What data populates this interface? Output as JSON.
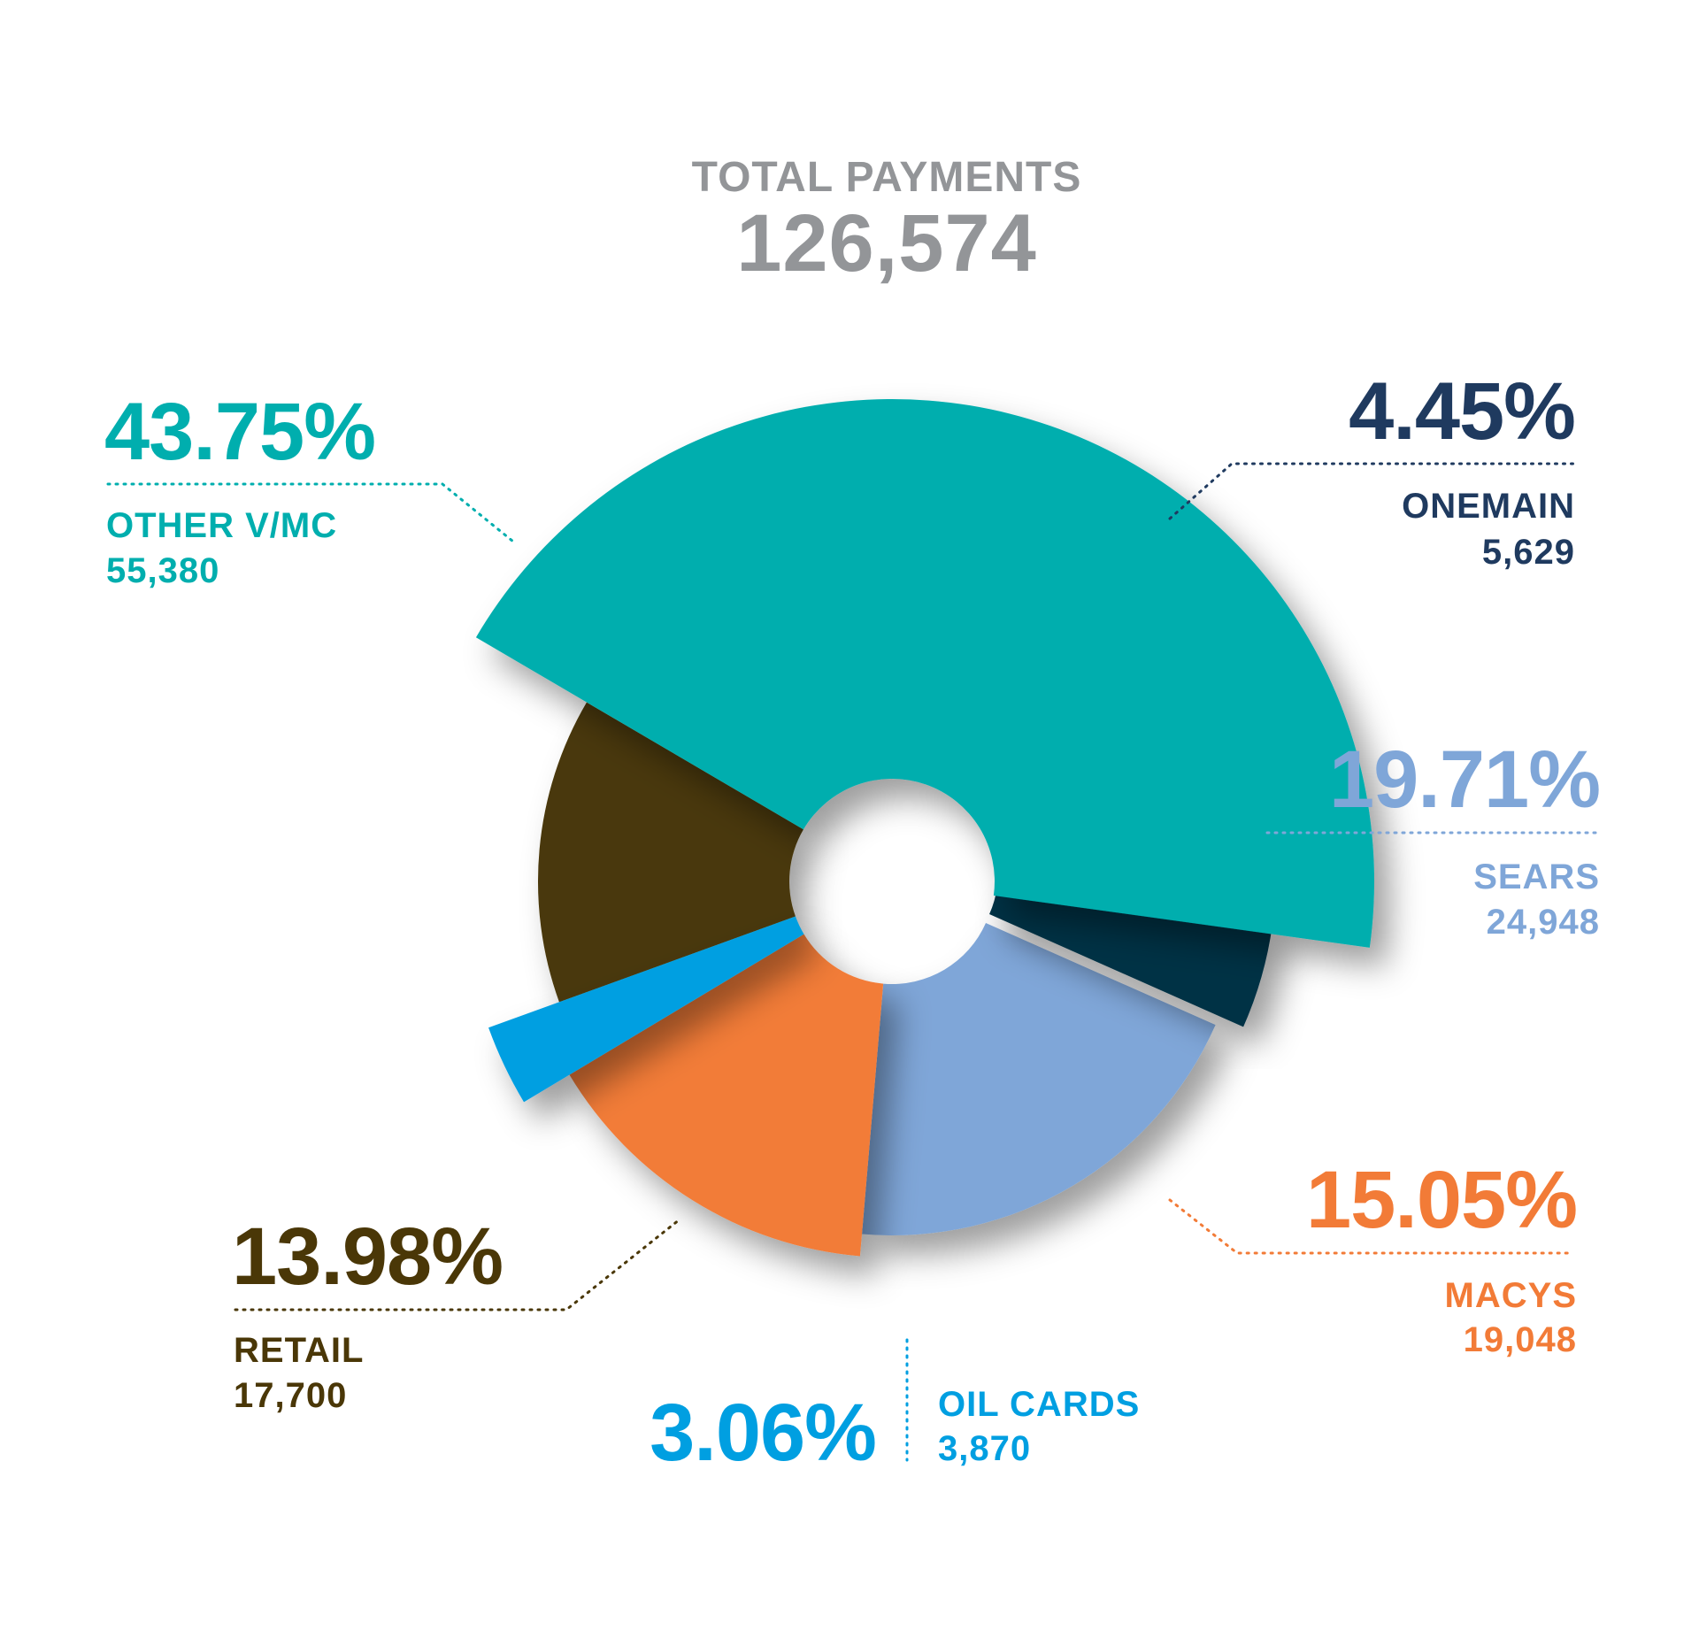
{
  "colors": {
    "other_vmc": "#00AEAE",
    "onemain": "#003345",
    "sears": "#7FA6D8",
    "macys": "#F27B37",
    "oil_cards": "#009FE1",
    "retail": "#4A3707",
    "title": "#939598",
    "onemain_text": "#1F3A5F"
  },
  "chart_data": {
    "type": "pie",
    "title": "TOTAL PAYMENTS",
    "total": "126,574",
    "legend": "none",
    "slices": [
      {
        "label": "OTHER V/MC",
        "value": 55380,
        "value_text": "55,380",
        "percent": 43.75,
        "percent_text": "43.75%"
      },
      {
        "label": "ONEMAIN",
        "value": 5629,
        "value_text": "5,629",
        "percent": 4.45,
        "percent_text": "4.45%"
      },
      {
        "label": "SEARS",
        "value": 24948,
        "value_text": "24,948",
        "percent": 19.71,
        "percent_text": "19.71%"
      },
      {
        "label": "MACYS",
        "value": 19048,
        "value_text": "19,048",
        "percent": 15.05,
        "percent_text": "15.05%"
      },
      {
        "label": "OIL CARDS",
        "value": 3870,
        "value_text": "3,870",
        "percent": 3.06,
        "percent_text": "3.06%"
      },
      {
        "label": "RETAIL",
        "value": 17700,
        "value_text": "17,700",
        "percent": 13.98,
        "percent_text": "13.98%"
      }
    ]
  }
}
